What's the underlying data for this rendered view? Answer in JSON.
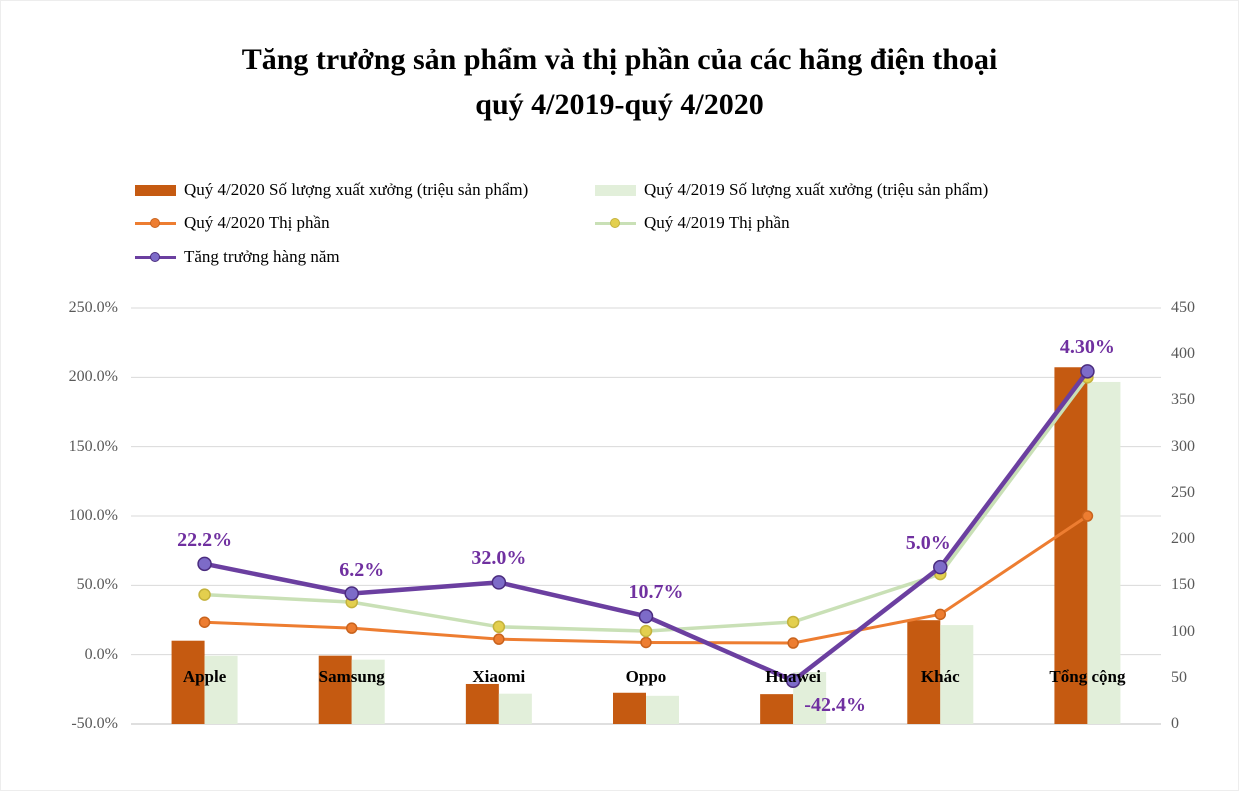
{
  "title": {
    "line1": "Tăng trưởng sản phẩm và thị phần của các hãng điện thoại",
    "line2": "quý 4/2019-quý 4/2020"
  },
  "colors": {
    "background": "#ffffff",
    "gridline": "#d9d9d9",
    "axis_line": "#bfbfbf",
    "tick_text": "#595959",
    "category_text": "#000000",
    "growth_label": "#7030A0"
  },
  "chart_data": {
    "type": "combo: bar (right axis) + stacked line (left axis)",
    "categories": [
      "Apple",
      "Samsung",
      "Xiaomi",
      "Oppo",
      "Huawei",
      "Khác",
      "Tổng cộng"
    ],
    "series": [
      {
        "name": "Quý 4/2020 Số lượng xuất xưởng  (triệu sản phẩm)",
        "type": "bar",
        "axis": "right",
        "color": "#C55A11",
        "values": [
          90.1,
          73.9,
          43.3,
          33.8,
          32.3,
          112.3,
          385.9
        ]
      },
      {
        "name": "Quý 4/2019 Số lượng xuất xưởng (triệu sản phẩm)",
        "type": "bar",
        "axis": "right",
        "color": "#E2EFDA",
        "values": [
          73.8,
          69.6,
          32.8,
          30.5,
          56.2,
          107.0,
          370.0
        ]
      },
      {
        "name": "Quý 4/2020 Thị phần",
        "type": "line",
        "axis": "left",
        "stacked": true,
        "color": "#ED7D31",
        "marker_color": "#ED7D31",
        "marker_stroke": "#C9631D",
        "line_width": 3,
        "marker_radius": 5,
        "values": [
          23.4,
          19.1,
          11.2,
          8.8,
          8.4,
          29.1,
          100.0
        ]
      },
      {
        "name": "Quý 4/2019 Thị phần",
        "type": "line",
        "axis": "left",
        "stacked": true,
        "color": "#C9E0B6",
        "marker_color": "#E3CF4E",
        "marker_stroke": "#C4B23C",
        "line_width": 3.5,
        "marker_radius": 5.5,
        "values": [
          19.9,
          18.8,
          8.9,
          8.2,
          15.2,
          29.0,
          100.0
        ]
      },
      {
        "name": "Tăng trưởng hàng năm",
        "type": "line",
        "axis": "left",
        "stacked": true,
        "color": "#6B3FA0",
        "marker_color": "#7D6BC8",
        "marker_stroke": "#4B2C7F",
        "line_width": 4.5,
        "marker_radius": 6.5,
        "values": [
          22.2,
          6.2,
          32.0,
          10.7,
          -42.4,
          5.0,
          4.3
        ],
        "point_labels": [
          "22.2%",
          "6.2%",
          "32.0%",
          "10.7%",
          "-42.4%",
          "5.0%",
          "4.30%"
        ],
        "label_dx": [
          0,
          10,
          0,
          10,
          42,
          -12,
          0
        ],
        "label_above": [
          true,
          true,
          true,
          true,
          false,
          true,
          true
        ]
      }
    ],
    "left_axis": {
      "min": -50,
      "max": 250,
      "tick_labels": [
        "250.0%",
        "200.0%",
        "150.0%",
        "100.0%",
        "50.0%",
        "0.0%",
        "-50.0%"
      ]
    },
    "right_axis": {
      "min": 0,
      "max": 450,
      "tick_labels": [
        "450",
        "400",
        "350",
        "300",
        "250",
        "200",
        "150",
        "100",
        "50",
        "0"
      ]
    },
    "legend_position": "top-left",
    "grid": true,
    "stacking_note": "Line series are cumulatively stacked on the left axis (Excel stacked-line chart); bars are plotted on the right axis."
  }
}
